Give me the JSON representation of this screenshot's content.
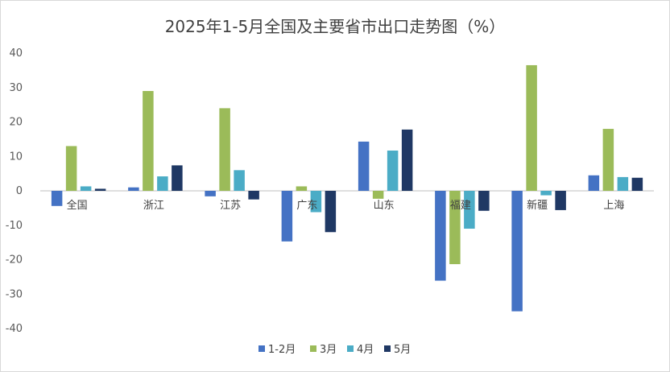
{
  "chart_data": {
    "type": "bar",
    "title": "2025年1-5月全国及主要省市出口走势图（%）",
    "categories": [
      "全国",
      "浙江",
      "江苏",
      "广东",
      "山东",
      "福建",
      "新疆",
      "上海"
    ],
    "series": [
      {
        "name": "1-2月",
        "color": "#4472C4",
        "values": [
          -4.4,
          1.0,
          -1.6,
          -14.7,
          14.3,
          -26.1,
          -35.0,
          4.5
        ]
      },
      {
        "name": "3月",
        "color": "#9BBB59",
        "values": [
          13.0,
          29.0,
          24.0,
          1.3,
          -2.3,
          -21.3,
          36.5,
          18.0
        ]
      },
      {
        "name": "4月",
        "color": "#4BACC6",
        "values": [
          1.3,
          4.2,
          6.0,
          -6.2,
          11.7,
          -11.0,
          -1.3,
          4.0
        ]
      },
      {
        "name": "5月",
        "color": "#1F3864",
        "values": [
          0.6,
          7.4,
          -2.5,
          -12.0,
          17.8,
          -5.8,
          -5.6,
          3.8
        ]
      }
    ],
    "ylim": [
      -40,
      40
    ],
    "yticks": [
      40,
      30,
      20,
      10,
      0,
      -10,
      -20,
      -30,
      -40
    ],
    "grid": false,
    "legend_position": "bottom"
  }
}
